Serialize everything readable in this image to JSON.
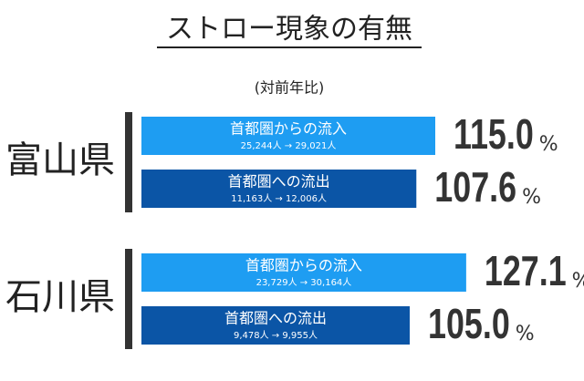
{
  "chart_data": {
    "type": "bar",
    "title": "ストロー現象の有無",
    "subtitle": "(対前年比)",
    "unit": "%",
    "groups": [
      {
        "name": "富山県",
        "bars": [
          {
            "label": "首都圏からの流入",
            "detail": "25,244人 → 29,021人",
            "value": 115.0,
            "value_label": "115.0",
            "color": "#1e9df2"
          },
          {
            "label": "首都圏への流出",
            "detail": "11,163人 → 12,006人",
            "value": 107.6,
            "value_label": "107.6",
            "color": "#0b55a6"
          }
        ]
      },
      {
        "name": "石川県",
        "bars": [
          {
            "label": "首都圏からの流入",
            "detail": "23,729人 → 30,164人",
            "value": 127.1,
            "value_label": "127.1",
            "color": "#1e9df2"
          },
          {
            "label": "首都圏への流出",
            "detail": "9,478人 → 9,955人",
            "value": 105.0,
            "value_label": "105.0",
            "color": "#0b55a6"
          }
        ]
      }
    ]
  }
}
